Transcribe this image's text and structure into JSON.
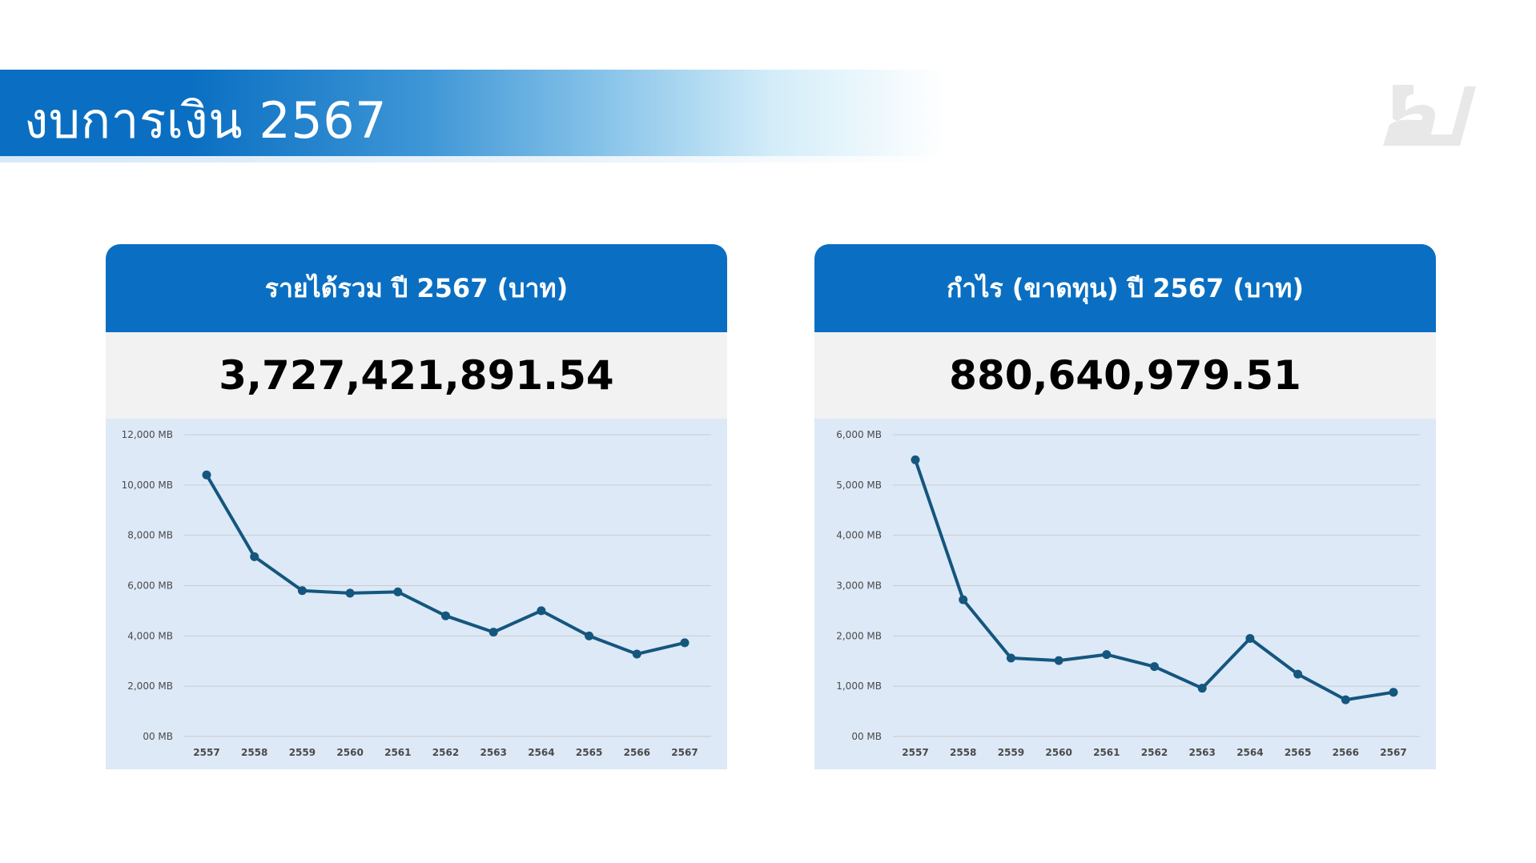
{
  "page": {
    "title": "งบการเงิน 2567"
  },
  "cards": [
    {
      "title": "รายได้รวม ปี 2567 (บาท)",
      "value": "3,727,421,891.54"
    },
    {
      "title": "กำไร (ขาดทุน) ปี 2567 (บาท)",
      "value": "880,640,979.51"
    }
  ],
  "colors": {
    "accent": "#0a6fc2",
    "line": "#14567e",
    "chart_bg": "#dde9f6",
    "value_bg": "#f2f2f2"
  },
  "chart_data": [
    {
      "type": "line",
      "title": "",
      "xlabel": "",
      "ylabel": "",
      "categories": [
        "2557",
        "2558",
        "2559",
        "2560",
        "2561",
        "2562",
        "2563",
        "2564",
        "2565",
        "2566",
        "2567"
      ],
      "values": [
        10400,
        7150,
        5800,
        5700,
        5750,
        4800,
        4150,
        5000,
        4000,
        3280,
        3727
      ],
      "ylim": [
        0,
        12000
      ],
      "yticks": [
        0,
        2000,
        4000,
        6000,
        8000,
        10000,
        12000
      ],
      "ytick_labels": [
        "00 MB",
        "2,000 MB",
        "4,000 MB",
        "6,000 MB",
        "8,000 MB",
        "10,000 MB",
        "12,000 MB"
      ],
      "grid": true,
      "legend": "none"
    },
    {
      "type": "line",
      "title": "",
      "xlabel": "",
      "ylabel": "",
      "categories": [
        "2557",
        "2558",
        "2559",
        "2560",
        "2561",
        "2562",
        "2563",
        "2564",
        "2565",
        "2566",
        "2567"
      ],
      "values": [
        5500,
        2720,
        1560,
        1510,
        1630,
        1390,
        960,
        1950,
        1240,
        730,
        880
      ],
      "ylim": [
        0,
        6000
      ],
      "yticks": [
        0,
        1000,
        2000,
        3000,
        4000,
        5000,
        6000
      ],
      "ytick_labels": [
        "00 MB",
        "1,000 MB",
        "2,000 MB",
        "3,000 MB",
        "4,000 MB",
        "5,000 MB",
        "6,000 MB"
      ],
      "grid": true,
      "legend": "none"
    }
  ]
}
